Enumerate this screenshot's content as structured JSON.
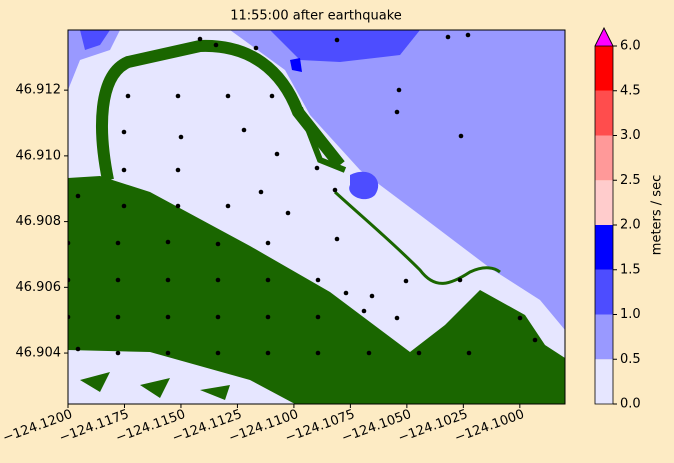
{
  "map": {
    "title": "11:55:00 after earthquake",
    "xlim": [
      -124.12,
      -124.098
    ],
    "ylim": [
      46.90245,
      46.91383
    ],
    "xticks": [
      {
        "value": -124.12,
        "label": "−124.1200"
      },
      {
        "value": -124.1175,
        "label": "−124.1175"
      },
      {
        "value": -124.115,
        "label": "−124.1150"
      },
      {
        "value": -124.1125,
        "label": "−124.1125"
      },
      {
        "value": -124.11,
        "label": "−124.1100"
      },
      {
        "value": -124.1075,
        "label": "−124.1075"
      },
      {
        "value": -124.105,
        "label": "−124.1050"
      },
      {
        "value": -124.1025,
        "label": "−124.1025"
      },
      {
        "value": -124.1,
        "label": "−124.1000"
      }
    ],
    "yticks": [
      46.904,
      46.906,
      46.908,
      {
        "value": 46.91,
        "label": "46.910"
      },
      46.912
    ],
    "colorbar": {
      "label": "meters / sec",
      "ticks": [
        {
          "value": 0,
          "label": "0.0"
        },
        {
          "value": 0.5,
          "label": "0.5"
        },
        {
          "value": 1,
          "label": "1.0"
        },
        {
          "value": 1.5,
          "label": "1.5"
        },
        {
          "value": 2,
          "label": "2.0"
        },
        {
          "value": 2.5,
          "label": "2.5"
        },
        {
          "value": 3,
          "label": "3.0"
        },
        {
          "value": 4.5,
          "label": "4.5"
        },
        {
          "value": 6,
          "label": "6.0"
        }
      ],
      "colors": [
        "#e6e6ff",
        "#9999ff",
        "#4d4dff",
        "#0000ff",
        "#ffcccc",
        "#ff9999",
        "#ff4d4d",
        "#ff0000"
      ],
      "extend_color": "#ff00ff"
    }
  }
}
